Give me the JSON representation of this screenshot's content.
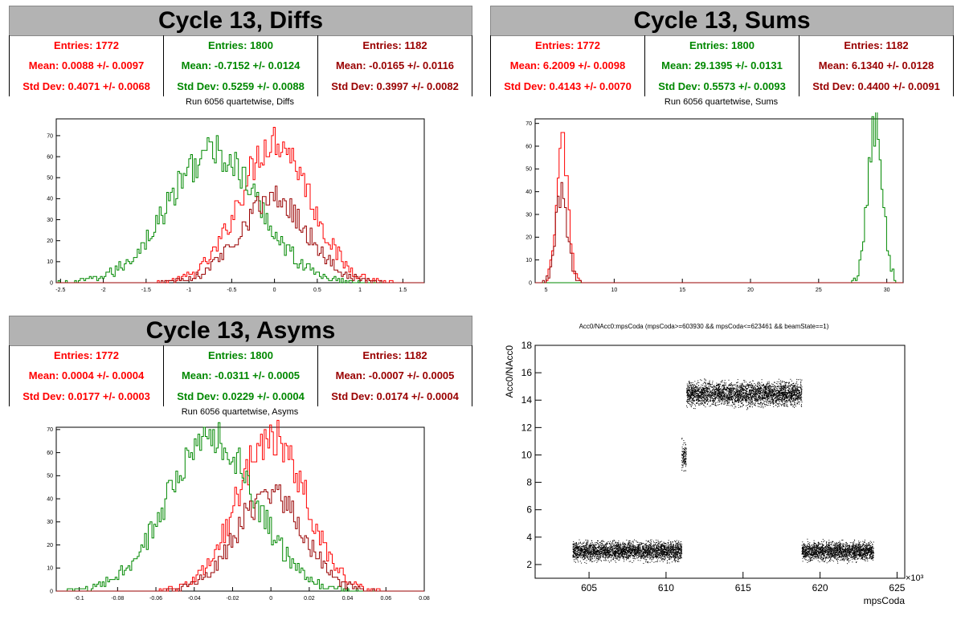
{
  "colors": {
    "red": "#ff0000",
    "green": "#008800",
    "darkred": "#990000"
  },
  "panels": [
    {
      "title": "Cycle 13, Diffs",
      "subtitle": "Run 6056 quartetwise, Diffs",
      "stats": [
        {
          "entries": "Entries: 1772",
          "mean": "Mean: 0.0088 +/- 0.0097",
          "std": "Std Dev: 0.4071 +/- 0.0068",
          "color": "#ff0000"
        },
        {
          "entries": "Entries: 1800",
          "mean": "Mean: -0.7152 +/- 0.0124",
          "std": "Std Dev: 0.5259 +/- 0.0088",
          "color": "#008800"
        },
        {
          "entries": "Entries: 1182",
          "mean": "Mean: -0.0165 +/- 0.0116",
          "std": "Std Dev: 0.3997 +/- 0.0082",
          "color": "#990000"
        }
      ]
    },
    {
      "title": "Cycle 13, Sums",
      "subtitle": "Run 6056 quartetwise, Sums",
      "stats": [
        {
          "entries": "Entries: 1772",
          "mean": "Mean: 6.2009 +/- 0.0098",
          "std": "Std Dev: 0.4143 +/- 0.0070",
          "color": "#ff0000"
        },
        {
          "entries": "Entries: 1800",
          "mean": "Mean: 29.1395 +/- 0.0131",
          "std": "Std Dev: 0.5573 +/- 0.0093",
          "color": "#008800"
        },
        {
          "entries": "Entries: 1182",
          "mean": "Mean: 6.1340 +/- 0.0128",
          "std": "Std Dev: 0.4400 +/- 0.0091",
          "color": "#990000"
        }
      ]
    },
    {
      "title": "Cycle 13, Asyms",
      "subtitle": "Run 6056 quartetwise, Asyms",
      "stats": [
        {
          "entries": "Entries: 1772",
          "mean": "Mean: 0.0004 +/- 0.0004",
          "std": "Std Dev: 0.0177 +/- 0.0003",
          "color": "#ff0000"
        },
        {
          "entries": "Entries: 1800",
          "mean": "Mean: -0.0311 +/- 0.0005",
          "std": "Std Dev: 0.0229 +/- 0.0004",
          "color": "#008800"
        },
        {
          "entries": "Entries: 1182",
          "mean": "Mean: -0.0007 +/- 0.0005",
          "std": "Std Dev: 0.0174 +/- 0.0004",
          "color": "#990000"
        }
      ]
    }
  ],
  "chart_data": [
    {
      "type": "histogram",
      "xlim": [
        -2.55,
        1.75
      ],
      "ylim": [
        0,
        78
      ],
      "xticks": [
        -2.5,
        -2,
        -1.5,
        -1,
        -0.5,
        0,
        0.5,
        1,
        1.5
      ],
      "xtick_labels": [
        "-2.5",
        "-2",
        "-1.5",
        "-1",
        "-0.5",
        "0",
        "0.5",
        "1",
        "1.5"
      ],
      "yticks": [
        0,
        10,
        20,
        30,
        40,
        50,
        60,
        70
      ],
      "series": [
        {
          "color": "#ff0000",
          "mean": 0.0088,
          "std": 0.4071,
          "peak": 68
        },
        {
          "color": "#008800",
          "mean": -0.7152,
          "std": 0.5259,
          "peak": 62
        },
        {
          "color": "#990000",
          "mean": -0.0165,
          "std": 0.3997,
          "peak": 40
        }
      ]
    },
    {
      "type": "histogram",
      "xlim": [
        4.2,
        31.2
      ],
      "ylim": [
        0,
        72
      ],
      "xticks": [
        5,
        10,
        15,
        20,
        25,
        30
      ],
      "xtick_labels": [
        "5",
        "10",
        "15",
        "20",
        "25",
        "30"
      ],
      "yticks": [
        0,
        10,
        20,
        30,
        40,
        50,
        60,
        70
      ],
      "series": [
        {
          "color": "#ff0000",
          "mean": 6.2009,
          "std": 0.4143,
          "peak": 64
        },
        {
          "color": "#008800",
          "mean": 29.1395,
          "std": 0.5573,
          "peak": 68
        },
        {
          "color": "#990000",
          "mean": 6.134,
          "std": 0.44,
          "peak": 40
        }
      ]
    },
    {
      "type": "histogram",
      "xlim": [
        -0.112,
        0.08
      ],
      "ylim": [
        0,
        71
      ],
      "xticks": [
        -0.1,
        -0.08,
        -0.06,
        -0.04,
        -0.02,
        0,
        0.02,
        0.04,
        0.06,
        0.08
      ],
      "xtick_labels": [
        "-0.1",
        "-0.08",
        "-0.06",
        "-0.04",
        "-0.02",
        "0",
        "0.02",
        "0.04",
        "0.06",
        "0.08"
      ],
      "yticks": [
        0,
        10,
        20,
        30,
        40,
        50,
        60,
        70
      ],
      "series": [
        {
          "color": "#ff0000",
          "mean": 0.0004,
          "std": 0.0177,
          "peak": 68
        },
        {
          "color": "#008800",
          "mean": -0.0311,
          "std": 0.0229,
          "peak": 66
        },
        {
          "color": "#990000",
          "mean": -0.0007,
          "std": 0.0174,
          "peak": 42
        }
      ]
    },
    {
      "type": "scatter",
      "title": "Acc0/NAcc0:mpsCoda (mpsCoda>=603930 && mpsCoda<=623461 && beamState==1)",
      "xlabel": "mpsCoda",
      "ylabel": "Acc0/NAcc0",
      "xscale_label": "×10³",
      "xlim": [
        601.5,
        625.5
      ],
      "ylim": [
        1,
        18
      ],
      "xticks": [
        605,
        610,
        615,
        620,
        625
      ],
      "xtick_labels": [
        "605",
        "610",
        "615",
        "620",
        "625"
      ],
      "yticks": [
        2,
        4,
        6,
        8,
        10,
        12,
        14,
        16,
        18
      ],
      "ytick_labels": [
        "2",
        "4",
        "6",
        "8",
        "10",
        "12",
        "14",
        "16",
        "18"
      ],
      "clusters": [
        {
          "x": [
            603.93,
            611.0
          ],
          "y_center": 3.0,
          "y_spread": 0.35
        },
        {
          "x": [
            611.0,
            611.3
          ],
          "y_center": 10.0,
          "y_spread": 0.6
        },
        {
          "x": [
            611.3,
            618.8
          ],
          "y_center": 14.5,
          "y_spread": 0.45
        },
        {
          "x": [
            618.8,
            623.46
          ],
          "y_center": 3.0,
          "y_spread": 0.35
        }
      ]
    }
  ]
}
